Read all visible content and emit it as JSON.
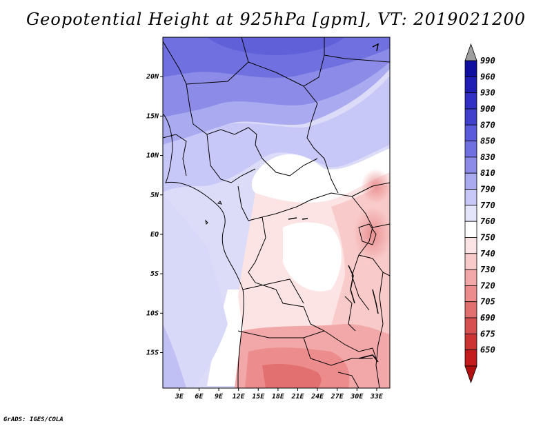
{
  "title": "Geopotential Height at 925hPa [gpm], VT: 2019021200",
  "credit": "GrADS: IGES/COLA",
  "map": {
    "lat_labels": [
      "20N",
      "15N",
      "10N",
      "5N",
      "EQ",
      "5S",
      "10S",
      "15S"
    ],
    "lat_values": [
      20,
      15,
      10,
      5,
      0,
      -5,
      -10,
      -15
    ],
    "lon_labels": [
      "3E",
      "6E",
      "9E",
      "12E",
      "15E",
      "18E",
      "21E",
      "24E",
      "27E",
      "30E",
      "33E"
    ],
    "lon_values": [
      3,
      6,
      9,
      12,
      15,
      18,
      21,
      24,
      27,
      30,
      33
    ],
    "lon_range": [
      0.5,
      35
    ],
    "lat_range": [
      -19.5,
      25
    ]
  },
  "colorbar": {
    "levels": [
      "990",
      "960",
      "930",
      "900",
      "870",
      "850",
      "830",
      "810",
      "790",
      "770",
      "760",
      "750",
      "740",
      "730",
      "720",
      "705",
      "690",
      "675",
      "650"
    ],
    "colors": [
      "#9e9e9e",
      "#1010a0",
      "#1e1eb4",
      "#3030c4",
      "#4040cc",
      "#5a5adc",
      "#7070e0",
      "#8c8ce8",
      "#aaaaf0",
      "#c8c8f8",
      "#e4e4fa",
      "#ffffff",
      "#fde4e4",
      "#f9caca",
      "#f2a8a8",
      "#ec8c8c",
      "#e27070",
      "#d65050",
      "#cc3434",
      "#c41c1c",
      "#b01010"
    ]
  }
}
